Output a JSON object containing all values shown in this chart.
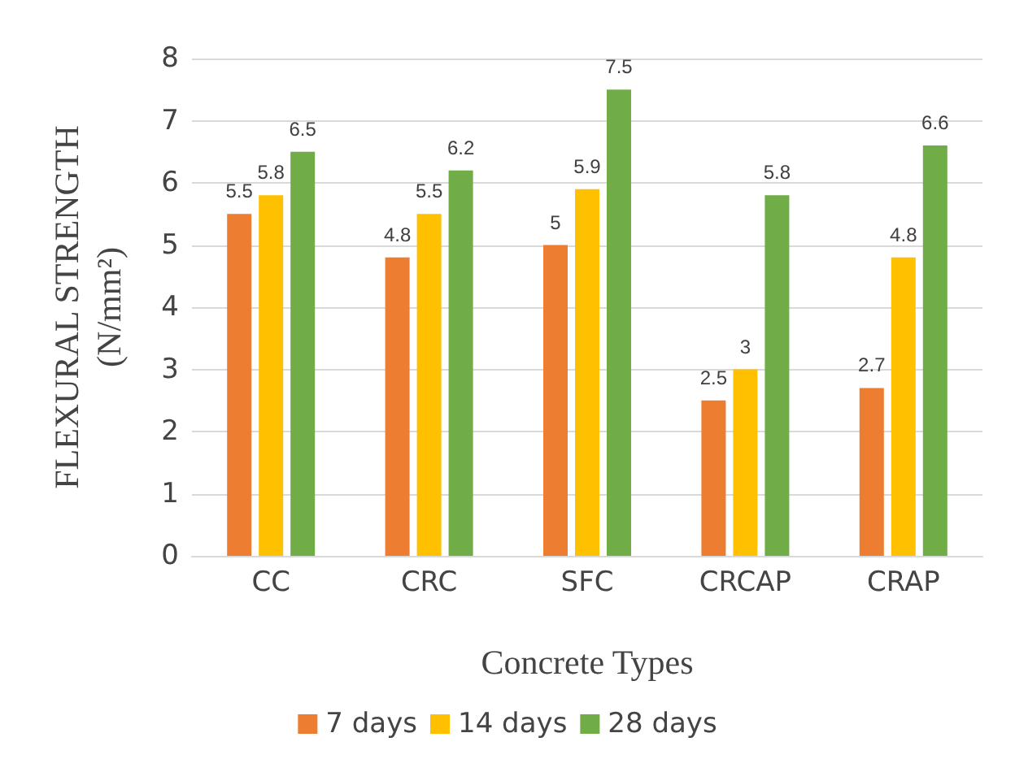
{
  "chart_data": {
    "type": "bar",
    "xlabel": "Concrete Types",
    "ylabel": "FLEXURAL STRENGTH\n(N/mm²)",
    "categories": [
      "CC",
      "CRC",
      "SFC",
      "CRCAP",
      "CRAP"
    ],
    "series": [
      {
        "name": "7 days",
        "color": "#ed7d31",
        "values": [
          5.5,
          4.8,
          5,
          2.5,
          2.7
        ]
      },
      {
        "name": "14 days",
        "color": "#ffc000",
        "values": [
          5.8,
          5.5,
          5.9,
          3,
          4.8
        ]
      },
      {
        "name": "28 days",
        "color": "#70ad47",
        "values": [
          6.5,
          6.2,
          7.5,
          5.8,
          6.6
        ]
      }
    ],
    "ylim": [
      0,
      8
    ],
    "yticks": [
      0,
      1,
      2,
      3,
      4,
      5,
      6,
      7,
      8
    ],
    "grid": "y",
    "legend": "bottom",
    "data_labels": true
  }
}
